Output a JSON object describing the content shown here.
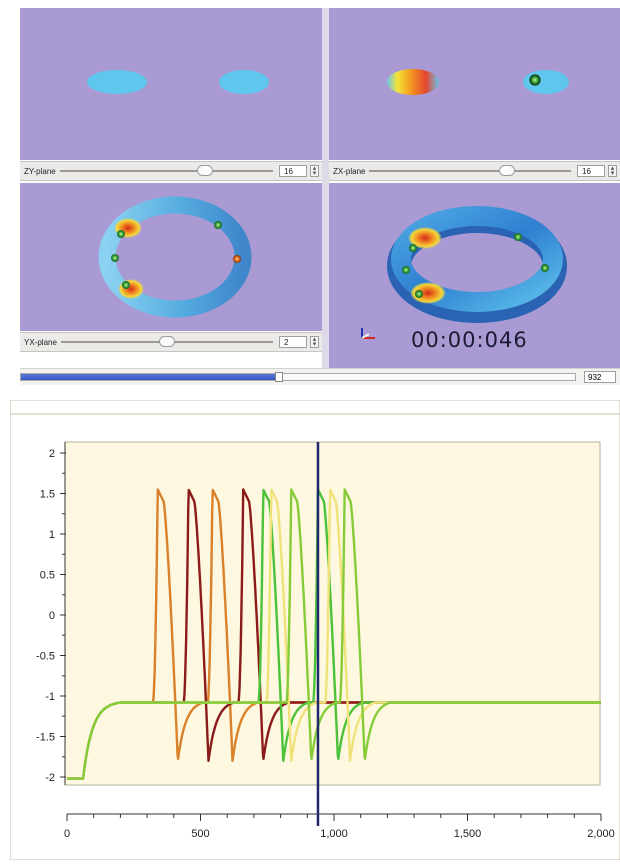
{
  "viewer": {
    "zy_label": "ZY-plane",
    "zy_value": "16",
    "zy_level": 0.68,
    "zx_label": "ZX-plane",
    "zx_value": "16",
    "zx_level": 0.68,
    "yx_label": "YX-plane",
    "yx_value": "2",
    "yx_level": 0.5,
    "timecode": "00:00:046",
    "spin_up": "▴",
    "spin_down": "▾",
    "progress_level": 0.465,
    "frame_value": "932",
    "colors": {
      "background": "#a99ad3",
      "ring": "#5fb6e6",
      "hot": "#e23b2a",
      "electrode": "#2fa23a"
    }
  },
  "chart_data": {
    "type": "line",
    "xlim": [
      0,
      2000
    ],
    "ylim": [
      -2.1,
      2.1
    ],
    "x_ticks": [
      "0",
      "500",
      "1,000",
      "1,500",
      "2,000"
    ],
    "x_tick_values": [
      0,
      500,
      1000,
      1500,
      2000
    ],
    "y_ticks": [
      "2",
      "1.5",
      "1",
      "0.5",
      "0",
      "-0.5",
      "-1",
      "-1.5",
      "-2"
    ],
    "y_tick_values": [
      2,
      1.5,
      1,
      0.5,
      0,
      -0.5,
      -1,
      -1.5,
      -2
    ],
    "cursor_x": 940,
    "rest_value": -1.08,
    "series": [
      {
        "color": "#d9822b",
        "peaks": [
          340,
          545
        ]
      },
      {
        "color": "#8b1a1a",
        "peaks": [
          455,
          660
        ]
      },
      {
        "color": "#4cc23a",
        "peaks": [
          735,
          940
        ]
      },
      {
        "color": "#f0e27a",
        "peaks": [
          765,
          985
        ]
      },
      {
        "color": "#86cc3a",
        "peaks": [
          840,
          1040
        ]
      }
    ],
    "colors": {
      "background": "#fdf8df",
      "cursor": "#1f2a6e",
      "frame": "#c9bda8"
    }
  }
}
